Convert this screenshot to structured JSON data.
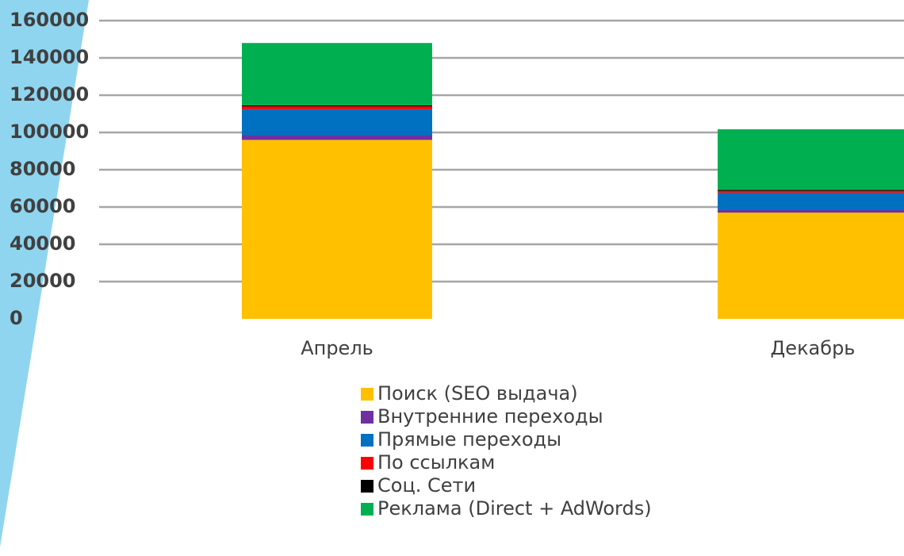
{
  "chart_data": {
    "type": "stacked_bar",
    "categories": [
      "Апрель",
      "Декабрь"
    ],
    "series": [
      {
        "name": "Поиск (SEO выдача)",
        "color": "#ffc000",
        "values": [
          96000,
          57000
        ]
      },
      {
        "name": "Внутренние переходы",
        "color": "#7030a0",
        "values": [
          2500,
          1300
        ]
      },
      {
        "name": "Прямые переходы",
        "color": "#0070c0",
        "values": [
          14000,
          9400
        ]
      },
      {
        "name": "По ссылкам",
        "color": "#ff0000",
        "values": [
          1500,
          1000
        ]
      },
      {
        "name": "Соц. Сети",
        "color": "#000000",
        "values": [
          500,
          500
        ]
      },
      {
        "name": "Реклама (Direct + AdWords)",
        "color": "#00b050",
        "values": [
          33500,
          32500
        ]
      }
    ],
    "ylim": [
      0,
      160000
    ],
    "yticks": [
      0,
      20000,
      40000,
      60000,
      80000,
      100000,
      120000,
      140000,
      160000
    ],
    "grid": true
  }
}
